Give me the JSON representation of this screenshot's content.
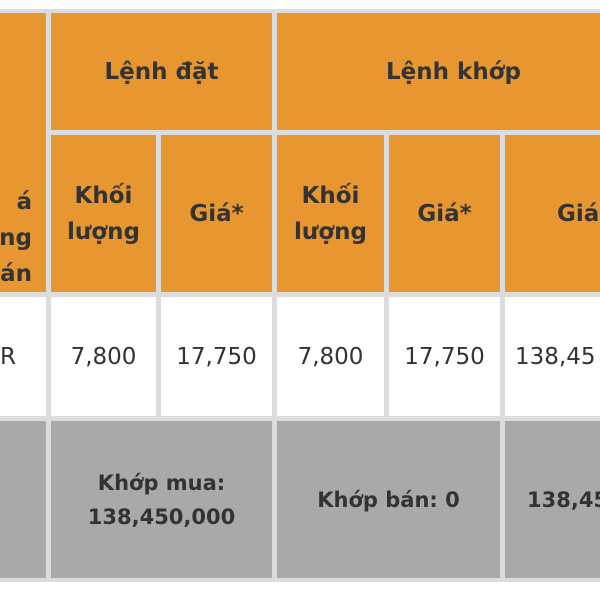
{
  "header": {
    "col0_fragment": [
      "á",
      "ng",
      "án"
    ],
    "lenh_dat": "Lệnh đặt",
    "lenh_khop": "Lệnh khớp",
    "sub": {
      "dat_khoi_luong": "Khối lượng",
      "dat_gia": "Giá*",
      "khop_khoi_luong": "Khối lượng",
      "khop_gia": "Giá*",
      "khop_gia_tri_fragment": "Giá"
    }
  },
  "row": {
    "col0_fragment": "R",
    "dat_khoi_luong": "7,800",
    "dat_gia": "17,750",
    "khop_khoi_luong": "7,800",
    "khop_gia": "17,750",
    "khop_gia_tri_fragment": "138,45"
  },
  "summary": {
    "khop_mua_label": "Khớp mua:",
    "khop_mua_value": "138,450,000",
    "khop_ban": "Khớp bán: 0",
    "total_fragment": "138,45"
  },
  "colors": {
    "header": "#e8962f",
    "summary": "#a9a9a9",
    "grid": "#dcdcdc",
    "text": "#333333"
  }
}
